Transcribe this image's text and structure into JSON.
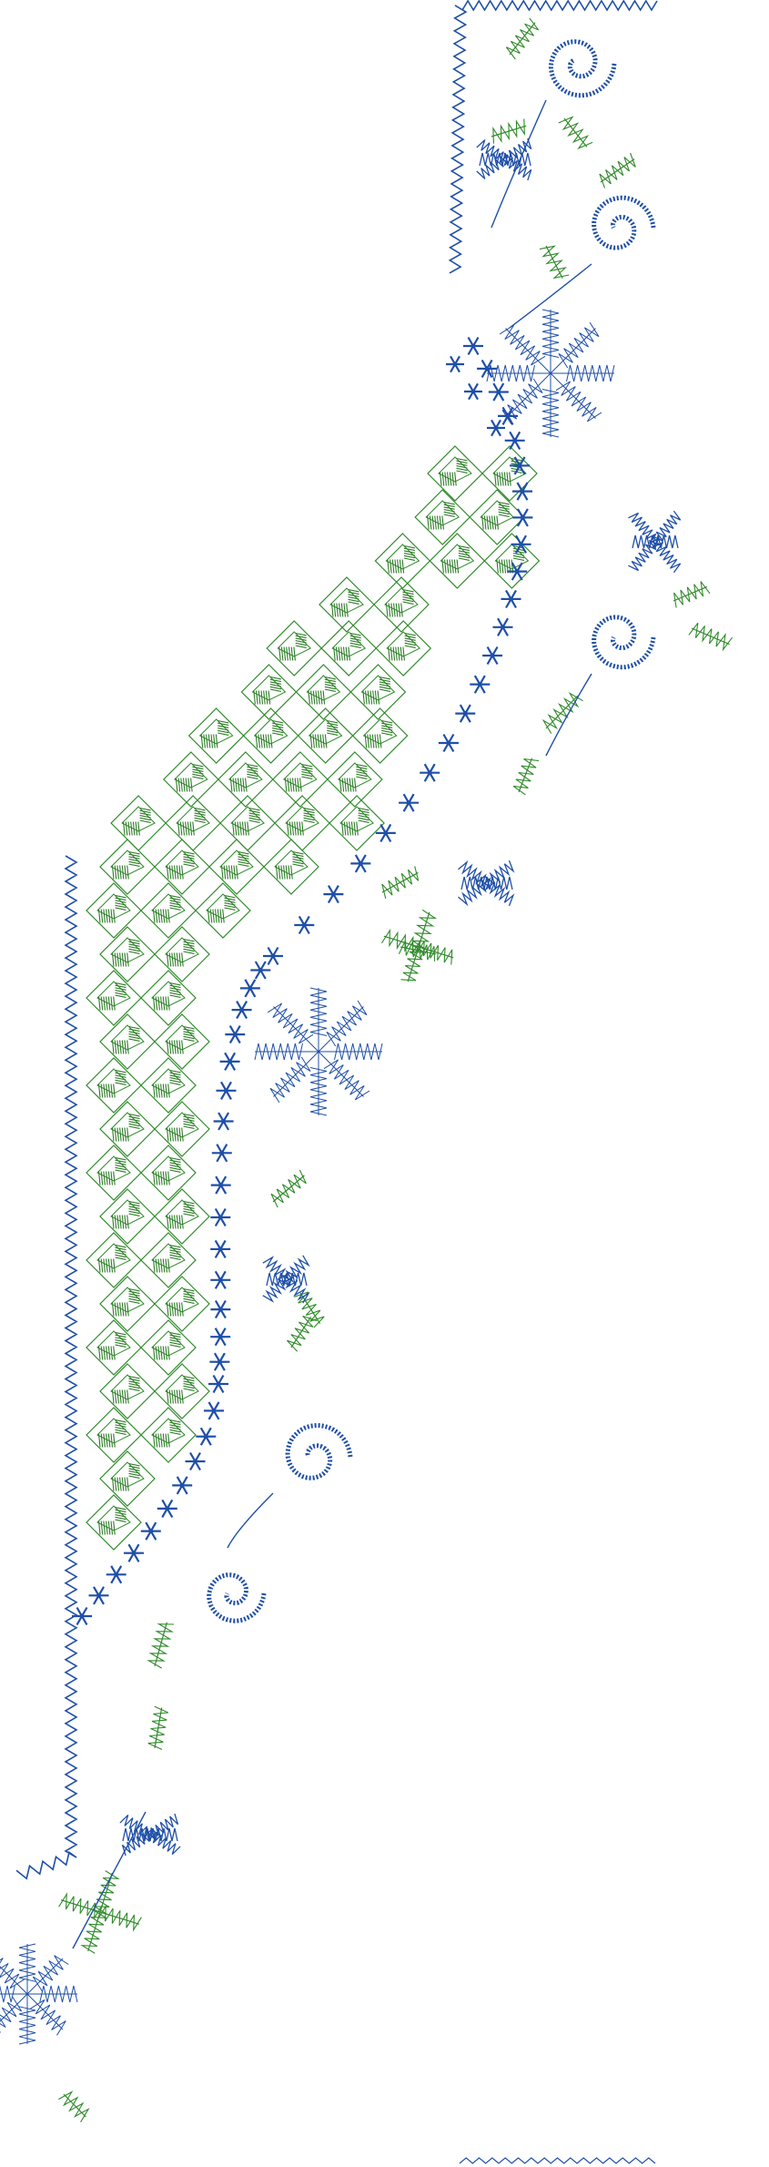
{
  "design": {
    "name": "",
    "colors": {
      "background": "#ffffff",
      "blue_thread": "#1f4fa8",
      "green_thread": "#2f8a2a",
      "green_dark": "#2a7a24"
    },
    "icons": [
      "neckline-border",
      "geometric-lattice-fill",
      "asterisk-flower-chain",
      "scroll-curl-motif",
      "star-flower-motif",
      "leaf-sprig-motif",
      "knot-bud-motif"
    ]
  }
}
